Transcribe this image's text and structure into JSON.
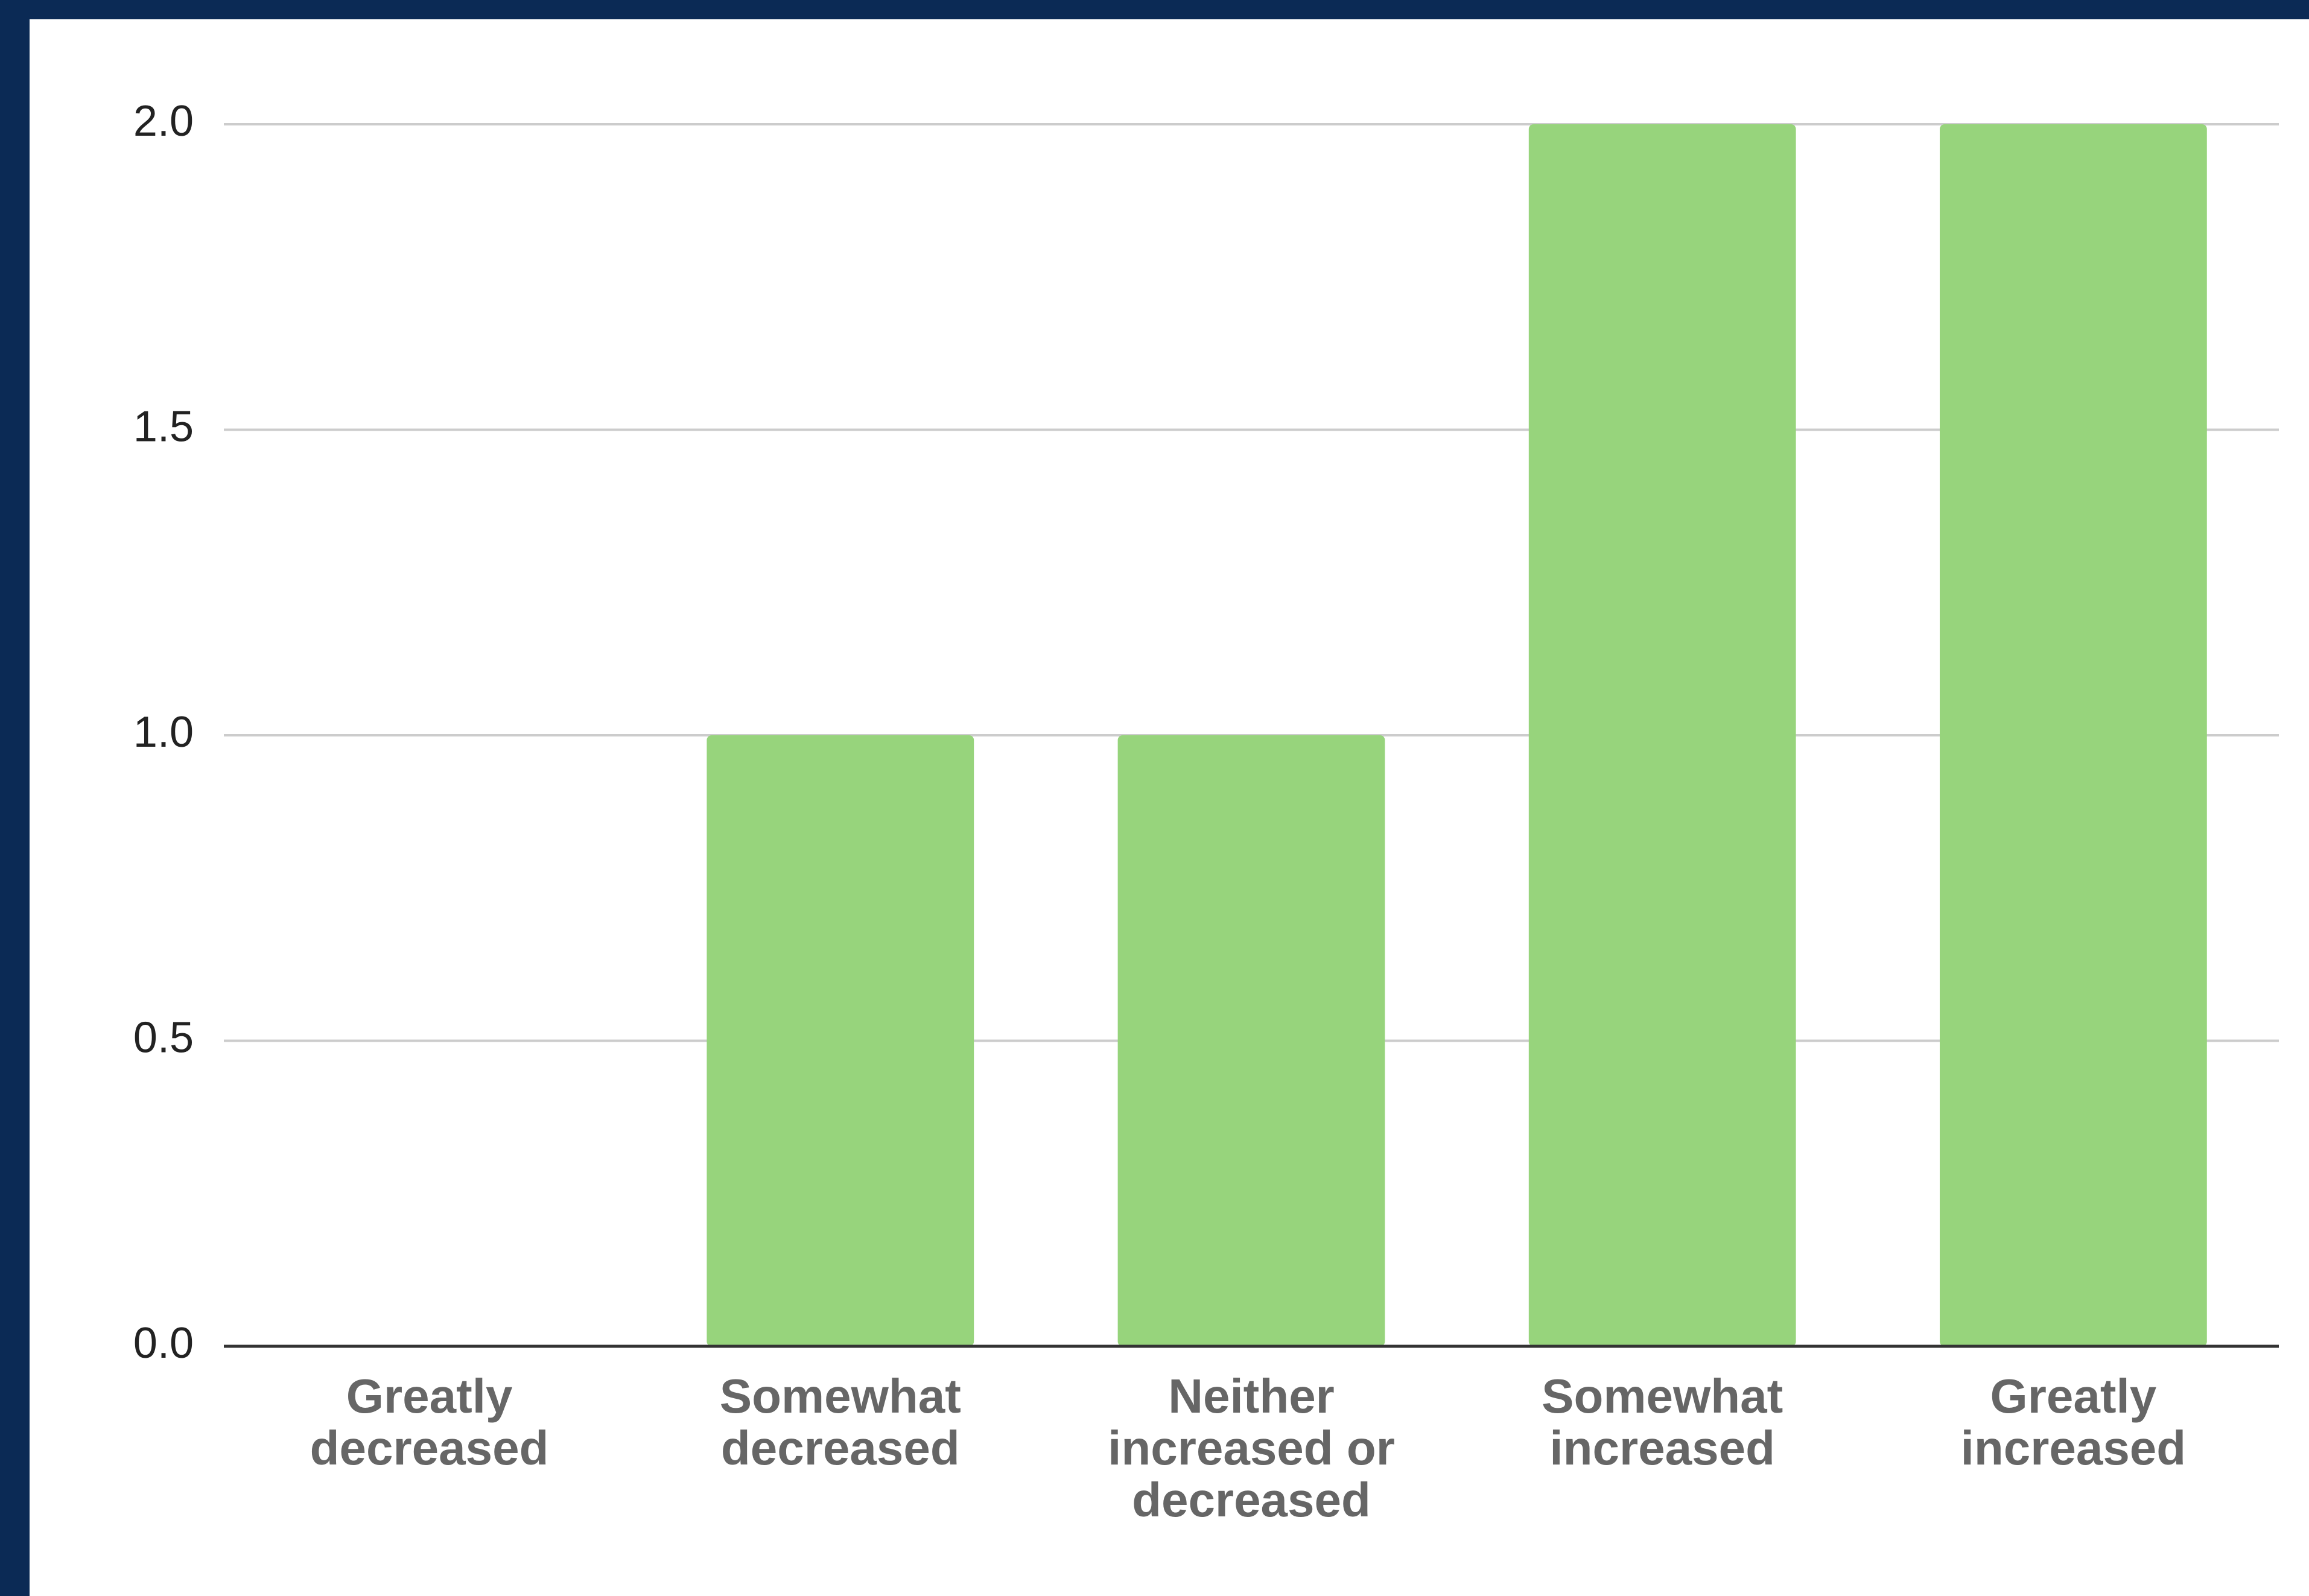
{
  "colors": {
    "frame": "#0b2a55",
    "background": "#ffffff",
    "bar": "#97d47c",
    "grid": "#cccccc",
    "axis": "#333333",
    "tick_text": "#222222",
    "category_text": "#666666"
  },
  "chart_data": {
    "type": "bar",
    "title": "",
    "xlabel": "",
    "ylabel": "",
    "categories": [
      [
        "Greatly",
        "decreased"
      ],
      [
        "Somewhat",
        "decreased"
      ],
      [
        "Neither",
        "increased or",
        "decreased"
      ],
      [
        "Somewhat",
        "increased"
      ],
      [
        "Greatly",
        "increased"
      ]
    ],
    "values": [
      0,
      1,
      1,
      2,
      2
    ],
    "ylim": [
      0,
      2
    ],
    "yticks": [
      "0.0",
      "0.5",
      "1.0",
      "1.5",
      "2.0"
    ],
    "grid": true,
    "legend": "none"
  }
}
